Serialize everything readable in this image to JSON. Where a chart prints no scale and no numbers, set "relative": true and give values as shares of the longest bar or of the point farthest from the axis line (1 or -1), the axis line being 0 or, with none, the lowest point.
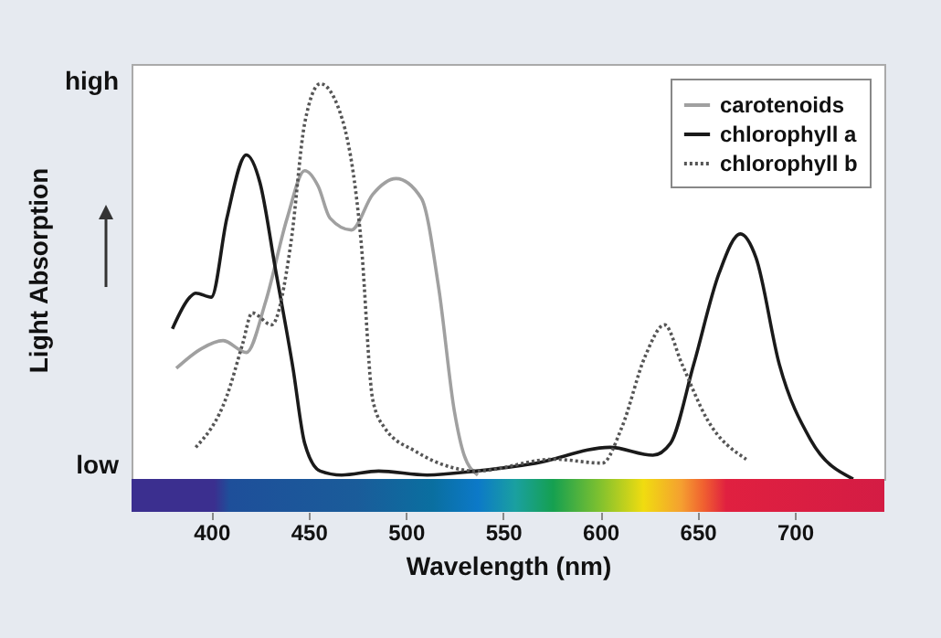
{
  "chart_data": {
    "type": "line",
    "xlabel": "Wavelength (nm)",
    "ylabel": "Light Absorption",
    "xlim": [
      359,
      746
    ],
    "xticks": [
      400,
      450,
      500,
      550,
      600,
      650,
      700
    ],
    "relative": true,
    "annotations": [
      "high",
      "low"
    ],
    "grid": false,
    "legend": "top right",
    "series": [
      {
        "name": "carotenoids",
        "color": "#a0a0a0",
        "line_style": "solid",
        "x": [
          382,
          395,
          406,
          418,
          428,
          439,
          448,
          455,
          461,
          472,
          483,
          495,
          508,
          517,
          525,
          530,
          537
        ],
        "values": [
          0.28,
          0.33,
          0.35,
          0.32,
          0.45,
          0.66,
          0.78,
          0.74,
          0.66,
          0.63,
          0.72,
          0.76,
          0.71,
          0.48,
          0.17,
          0.06,
          0.01
        ]
      },
      {
        "name": "chlorophyll a",
        "color": "#1a1a1a",
        "line_style": "solid",
        "x": [
          380,
          389,
          392,
          400,
          408,
          418,
          425,
          433,
          442,
          448,
          456,
          467,
          486,
          511,
          536,
          567,
          605,
          627,
          636,
          648,
          661,
          672,
          680,
          692,
          708,
          730
        ],
        "values": [
          0.38,
          0.46,
          0.47,
          0.46,
          0.66,
          0.82,
          0.75,
          0.53,
          0.28,
          0.09,
          0.02,
          0.01,
          0.02,
          0.01,
          0.02,
          0.04,
          0.08,
          0.06,
          0.09,
          0.29,
          0.52,
          0.62,
          0.56,
          0.29,
          0.1,
          0.0
        ]
      },
      {
        "name": "chlorophyll b",
        "color": "#555555",
        "line_style": "dotted",
        "x": [
          392,
          408,
          416,
          421,
          431,
          441,
          448,
          456,
          466,
          477,
          483,
          489,
          505,
          523,
          536,
          576,
          601,
          611,
          623,
          633,
          642,
          655,
          675
        ],
        "values": [
          0.08,
          0.21,
          0.34,
          0.42,
          0.39,
          0.6,
          0.9,
          1.0,
          0.93,
          0.6,
          0.2,
          0.13,
          0.07,
          0.03,
          0.02,
          0.05,
          0.04,
          0.13,
          0.31,
          0.39,
          0.29,
          0.15,
          0.05
        ]
      }
    ]
  }
}
